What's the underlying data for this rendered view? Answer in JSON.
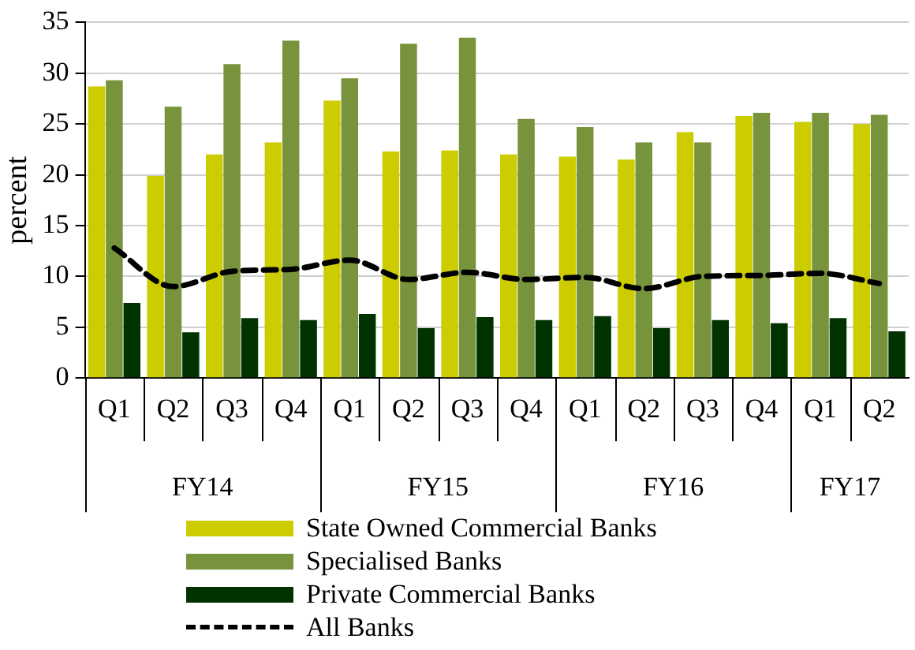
{
  "chart_data": {
    "type": "bar",
    "ylabel": "percent",
    "categories": [
      "Q1",
      "Q2",
      "Q3",
      "Q4",
      "Q1",
      "Q2",
      "Q3",
      "Q4",
      "Q1",
      "Q2",
      "Q3",
      "Q4",
      "Q1",
      "Q2"
    ],
    "annotations": [
      "FY14",
      "FY15",
      "FY16",
      "FY17"
    ],
    "series": [
      {
        "name": "State Owned Commercial Banks",
        "color": "#cccc00",
        "values": [
          28.7,
          19.9,
          22.0,
          23.2,
          27.3,
          22.3,
          22.4,
          22.0,
          21.8,
          21.5,
          24.2,
          25.8,
          25.2,
          25.0
        ]
      },
      {
        "name": "Specialised Banks",
        "color": "#77933c",
        "values": [
          29.3,
          26.7,
          30.9,
          33.2,
          29.5,
          32.9,
          33.5,
          25.5,
          24.7,
          23.2,
          23.2,
          26.1,
          26.1,
          25.9
        ]
      },
      {
        "name": "Private Commercial Banks",
        "color": "#003300",
        "values": [
          7.4,
          4.5,
          5.9,
          5.7,
          6.3,
          4.9,
          6.0,
          5.7,
          6.1,
          4.9,
          5.7,
          5.4,
          5.9,
          4.6
        ]
      },
      {
        "name": "All Banks",
        "type": "line",
        "color": "#000000",
        "line_style": "dashed",
        "marker": "none",
        "values": [
          12.8,
          9.0,
          10.5,
          10.7,
          11.6,
          9.7,
          10.4,
          9.7,
          9.9,
          8.8,
          10.0,
          10.1,
          10.3,
          9.3
        ]
      }
    ],
    "ylim": [
      0,
      35
    ],
    "yticks": [
      0,
      5,
      10,
      15,
      20,
      25,
      30,
      35
    ],
    "grid": "y",
    "legend": "bottom"
  }
}
